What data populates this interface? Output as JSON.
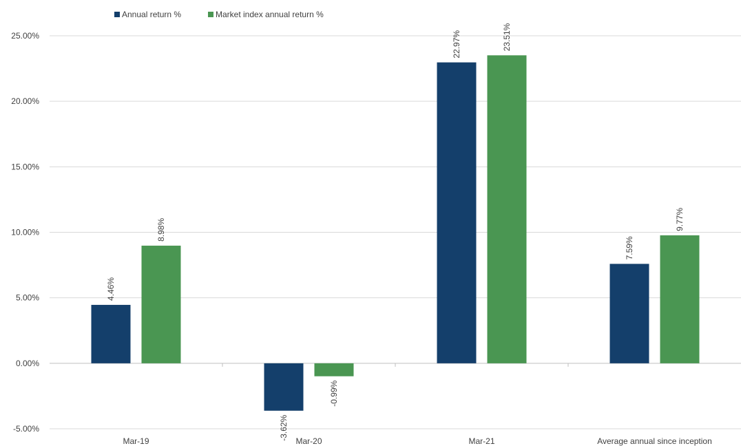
{
  "chart_data": {
    "type": "bar",
    "categories": [
      "Mar-19",
      "Mar-20",
      "Mar-21",
      "Average annual since inception"
    ],
    "series": [
      {
        "name": "Annual return %",
        "color": "#143f6b",
        "values": [
          4.46,
          -3.62,
          22.97,
          7.59
        ],
        "labels": [
          "4.46%",
          "-3.62%",
          "22.97%",
          "7.59%"
        ]
      },
      {
        "name": "Market index annual return %",
        "color": "#4a9652",
        "values": [
          8.98,
          -0.99,
          23.51,
          9.77
        ],
        "labels": [
          "8.98%",
          "-0.99%",
          "23.51%",
          "9.77%"
        ]
      }
    ],
    "yticks": [
      25,
      20,
      15,
      10,
      5,
      0,
      -5
    ],
    "ytick_labels": [
      "25.00%",
      "20.00%",
      "15.00%",
      "10.00%",
      "5.00%",
      "0.00%",
      "-5.00%"
    ],
    "ylim": [
      -5,
      25
    ],
    "legend_position": "top-left",
    "grid": true
  }
}
